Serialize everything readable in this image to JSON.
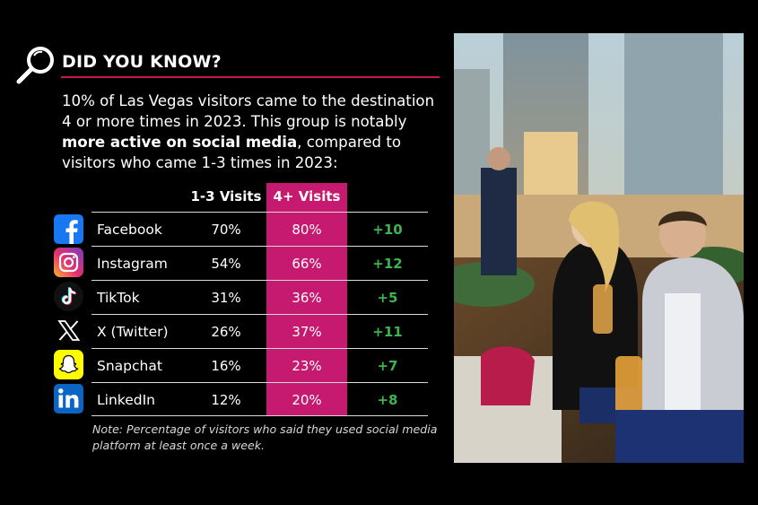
{
  "header": {
    "title": "DID YOU KNOW?",
    "icon": "magnifier-icon"
  },
  "intro": {
    "part1": "10% of Las Vegas visitors came to the destination 4 or more times in 2023. This group is notably ",
    "bold": "more active on social media",
    "part2": ", compared to visitors who came 1-3 times in 2023:"
  },
  "table": {
    "columns": [
      "1-3 Visits",
      "4+ Visits"
    ],
    "highlight_color": "#c51a6f",
    "diff_color": "#3fb34f",
    "rows": [
      {
        "icon": "facebook-icon",
        "platform": "Facebook",
        "v13": "70%",
        "v4": "80%",
        "diff": "+10"
      },
      {
        "icon": "instagram-icon",
        "platform": "Instagram",
        "v13": "54%",
        "v4": "66%",
        "diff": "+12"
      },
      {
        "icon": "tiktok-icon",
        "platform": "TikTok",
        "v13": "31%",
        "v4": "36%",
        "diff": "+5"
      },
      {
        "icon": "x-twitter-icon",
        "platform": "X (Twitter)",
        "v13": "26%",
        "v4": "37%",
        "diff": "+11"
      },
      {
        "icon": "snapchat-icon",
        "platform": "Snapchat",
        "v13": "16%",
        "v4": "23%",
        "diff": "+7"
      },
      {
        "icon": "linkedin-icon",
        "platform": "LinkedIn",
        "v13": "12%",
        "v4": "20%",
        "diff": "+8"
      }
    ]
  },
  "note": "Note: Percentage of visitors who said they used social media platform at least once a week."
}
